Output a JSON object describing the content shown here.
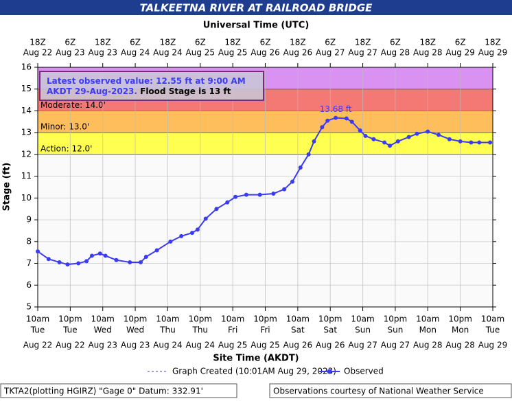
{
  "chart_data": {
    "type": "line",
    "title": "TALKEETNA RIVER AT RAILROAD BRIDGE",
    "top_axis_label": "Universal Time (UTC)",
    "x_axis_label": "Site Time (AKDT)",
    "y_axis_label": "Stage (ft)",
    "xlim": [
      "2023-08-22T10:00",
      "2023-08-29T10:00"
    ],
    "xticks": [
      {
        "value": "2023-08-22T10:00",
        "label": "10am",
        "day": "Tue",
        "date": "Aug 22",
        "utc": "18Z",
        "utc_date": "Aug 22"
      },
      {
        "value": "2023-08-22T22:00",
        "label": "10pm",
        "day": "Tue",
        "date": "Aug 22",
        "utc": "6Z",
        "utc_date": "Aug 23"
      },
      {
        "value": "2023-08-23T10:00",
        "label": "10am",
        "day": "Wed",
        "date": "Aug 23",
        "utc": "18Z",
        "utc_date": "Aug 23"
      },
      {
        "value": "2023-08-23T22:00",
        "label": "10pm",
        "day": "Wed",
        "date": "Aug 23",
        "utc": "6Z",
        "utc_date": "Aug 24"
      },
      {
        "value": "2023-08-24T10:00",
        "label": "10am",
        "day": "Thu",
        "date": "Aug 24",
        "utc": "18Z",
        "utc_date": "Aug 24"
      },
      {
        "value": "2023-08-24T22:00",
        "label": "10pm",
        "day": "Thu",
        "date": "Aug 24",
        "utc": "6Z",
        "utc_date": "Aug 25"
      },
      {
        "value": "2023-08-25T10:00",
        "label": "10am",
        "day": "Fri",
        "date": "Aug 25",
        "utc": "18Z",
        "utc_date": "Aug 25"
      },
      {
        "value": "2023-08-25T22:00",
        "label": "10pm",
        "day": "Fri",
        "date": "Aug 25",
        "utc": "6Z",
        "utc_date": "Aug 26"
      },
      {
        "value": "2023-08-26T10:00",
        "label": "10am",
        "day": "Sat",
        "date": "Aug 26",
        "utc": "18Z",
        "utc_date": "Aug 26"
      },
      {
        "value": "2023-08-26T22:00",
        "label": "10pm",
        "day": "Sat",
        "date": "Aug 26",
        "utc": "6Z",
        "utc_date": "Aug 27"
      },
      {
        "value": "2023-08-27T10:00",
        "label": "10am",
        "day": "Sun",
        "date": "Aug 27",
        "utc": "18Z",
        "utc_date": "Aug 27"
      },
      {
        "value": "2023-08-27T22:00",
        "label": "10pm",
        "day": "Sun",
        "date": "Aug 27",
        "utc": "6Z",
        "utc_date": "Aug 28"
      },
      {
        "value": "2023-08-28T10:00",
        "label": "10am",
        "day": "Mon",
        "date": "Aug 28",
        "utc": "18Z",
        "utc_date": "Aug 28"
      },
      {
        "value": "2023-08-28T22:00",
        "label": "10pm",
        "day": "Mon",
        "date": "Aug 28",
        "utc": "6Z",
        "utc_date": "Aug 29"
      },
      {
        "value": "2023-08-29T10:00",
        "label": "10am",
        "day": "Tue",
        "date": "Aug 29",
        "utc": "18Z",
        "utc_date": "Aug 29"
      }
    ],
    "ylim": [
      5,
      16
    ],
    "yticks": [
      5,
      6,
      7,
      8,
      9,
      10,
      11,
      12,
      13,
      14,
      15,
      16
    ],
    "grid": true,
    "bands": [
      {
        "label": "Action: 12.0'",
        "from": 12,
        "to": 13,
        "color": "#ffff33"
      },
      {
        "label": "Minor: 13.0'",
        "from": 13,
        "to": 14,
        "color": "#ffb340"
      },
      {
        "label": "Moderate: 14.0'",
        "from": 14,
        "to": 15,
        "color": "#f2605a"
      },
      {
        "from": 15,
        "to": 16,
        "color": "#d47ff0"
      }
    ],
    "x": [
      "2023-08-22T10:00",
      "2023-08-22T14:00",
      "2023-08-22T18:00",
      "2023-08-22T21:00",
      "2023-08-23T01:00",
      "2023-08-23T04:00",
      "2023-08-23T06:00",
      "2023-08-23T09:00",
      "2023-08-23T11:00",
      "2023-08-23T15:00",
      "2023-08-23T20:00",
      "2023-08-24T00:00",
      "2023-08-24T02:00",
      "2023-08-24T06:00",
      "2023-08-24T11:00",
      "2023-08-24T15:00",
      "2023-08-24T19:00",
      "2023-08-24T21:00",
      "2023-08-25T00:00",
      "2023-08-25T04:00",
      "2023-08-25T08:00",
      "2023-08-25T11:00",
      "2023-08-25T15:00",
      "2023-08-25T20:00",
      "2023-08-26T01:00",
      "2023-08-26T05:00",
      "2023-08-26T08:00",
      "2023-08-26T11:00",
      "2023-08-26T14:00",
      "2023-08-26T16:00",
      "2023-08-26T19:00",
      "2023-08-26T21:00",
      "2023-08-27T00:00",
      "2023-08-27T04:00",
      "2023-08-27T06:00",
      "2023-08-27T09:00",
      "2023-08-27T11:00",
      "2023-08-27T14:00",
      "2023-08-27T18:00",
      "2023-08-27T20:00",
      "2023-08-27T23:00",
      "2023-08-28T03:00",
      "2023-08-28T06:00",
      "2023-08-28T10:00",
      "2023-08-28T14:00",
      "2023-08-28T18:00",
      "2023-08-28T22:00",
      "2023-08-29T02:00",
      "2023-08-29T05:00",
      "2023-08-29T09:00"
    ],
    "series": [
      {
        "name": "Observed",
        "color": "#3b3bf2",
        "values": [
          7.55,
          7.2,
          7.05,
          6.95,
          7.0,
          7.1,
          7.35,
          7.45,
          7.35,
          7.15,
          7.05,
          7.05,
          7.3,
          7.6,
          8.0,
          8.25,
          8.4,
          8.55,
          9.05,
          9.5,
          9.8,
          10.05,
          10.15,
          10.15,
          10.2,
          10.4,
          10.75,
          11.4,
          12.0,
          12.6,
          13.25,
          13.55,
          13.68,
          13.65,
          13.5,
          13.1,
          12.85,
          12.7,
          12.55,
          12.4,
          12.6,
          12.8,
          12.95,
          13.05,
          12.9,
          12.7,
          12.6,
          12.55,
          12.55,
          12.55
        ]
      }
    ],
    "annotations": [
      {
        "text": "13.68 ft",
        "x": "2023-08-27T00:00",
        "y": 13.68
      }
    ],
    "info_box": {
      "latest": "Latest observed value: 12.55 ft at 9:00 AM AKDT 29-Aug-2023.",
      "flood_stage": "Flood Stage is 13 ft"
    },
    "legend": {
      "created": "Graph Created (10:01AM Aug 29, 2023)"
    },
    "footer": {
      "left": "TKTA2(plotting HGIRZ) \"Gage 0\" Datum: 332.91'",
      "right": "Observations courtesy of National Weather Service"
    }
  }
}
